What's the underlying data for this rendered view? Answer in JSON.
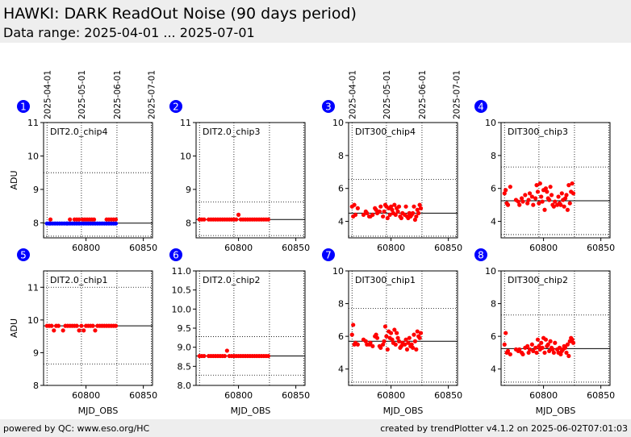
{
  "header": {
    "title": "HAWKI: DARK ReadOut Noise (90 days period)",
    "subtitle": "Data range: 2025-04-01 ... 2025-07-01"
  },
  "footer": {
    "left": "powered by QC: www.eso.org/HC",
    "right": "created by trendPlotter v4.1.2 on 2025-06-02T07:01:03"
  },
  "colors": {
    "marker_red": "#ff0000",
    "marker_blue": "#0000ff",
    "badge": "#0000ff",
    "header_bg": "#eeeeee"
  },
  "date_ticks": [
    "2025-04-01",
    "2025-05-01",
    "2025-06-01",
    "2025-07-01"
  ],
  "chart_data": [
    {
      "id": "1",
      "type": "scatter",
      "label": "DIT2.0_chip4",
      "ylabel": "ADU",
      "xlabel": "",
      "xlim": [
        60763,
        60858
      ],
      "ylim": [
        7.55,
        11
      ],
      "yticks": [
        8,
        9,
        10,
        11
      ],
      "xticks": [
        60800,
        60850
      ],
      "ref_line": 7.99,
      "dotted_lines": [
        9.5,
        7.6
      ],
      "series": [
        {
          "color": "#0000ff",
          "x": [
            60766,
            60768,
            60769,
            60771,
            60773,
            60775,
            60777,
            60779,
            60781,
            60783,
            60784,
            60786,
            60788,
            60790,
            60792,
            60794,
            60796,
            60798,
            60800,
            60802,
            60804,
            60806,
            60808,
            60810,
            60812,
            60814,
            60816,
            60818,
            60820,
            60822,
            60824,
            60826
          ],
          "y": [
            7.98,
            7.98,
            7.98,
            7.98,
            7.98,
            7.98,
            7.98,
            7.98,
            7.98,
            7.98,
            7.98,
            7.98,
            7.98,
            7.98,
            7.98,
            7.98,
            7.98,
            7.98,
            7.98,
            7.98,
            7.98,
            7.98,
            7.98,
            7.98,
            7.98,
            7.98,
            7.98,
            7.98,
            7.98,
            7.98,
            7.98,
            7.98
          ]
        },
        {
          "color": "#ff0000",
          "x": [
            60769,
            60786,
            60790,
            60792,
            60794,
            60797,
            60799,
            60801,
            60803,
            60805,
            60807,
            60818,
            60820,
            60822,
            60824,
            60826
          ],
          "y": [
            8.1,
            8.1,
            8.1,
            8.1,
            8.1,
            8.1,
            8.1,
            8.1,
            8.1,
            8.1,
            8.1,
            8.1,
            8.1,
            8.1,
            8.1,
            8.1
          ]
        }
      ]
    },
    {
      "id": "2",
      "type": "scatter",
      "label": "DIT2.0_chip3",
      "ylabel": "",
      "xlabel": "",
      "xlim": [
        60763,
        60858
      ],
      "ylim": [
        7.55,
        11
      ],
      "yticks": [
        8,
        9,
        10,
        11
      ],
      "xticks": [
        60800,
        60850
      ],
      "ref_line": 8.1,
      "dotted_lines": [
        8.62,
        7.62
      ],
      "series": [
        {
          "color": "#ff0000",
          "x": [
            60766,
            60768,
            60770,
            60774,
            60776,
            60778,
            60780,
            60782,
            60784,
            60786,
            60788,
            60790,
            60792,
            60794,
            60796,
            60798,
            60800,
            60802,
            60804,
            60806,
            60808,
            60810,
            60812,
            60814,
            60816,
            60818,
            60820,
            60822,
            60824,
            60826
          ],
          "y": [
            8.1,
            8.1,
            8.1,
            8.1,
            8.1,
            8.1,
            8.1,
            8.1,
            8.1,
            8.1,
            8.1,
            8.1,
            8.1,
            8.1,
            8.1,
            8.1,
            8.24,
            8.1,
            8.1,
            8.1,
            8.1,
            8.1,
            8.1,
            8.1,
            8.1,
            8.1,
            8.1,
            8.1,
            8.1,
            8.1
          ]
        }
      ]
    },
    {
      "id": "3",
      "type": "scatter",
      "label": "DIT300_chip4",
      "ylabel": "",
      "xlabel": "",
      "xlim": [
        60763,
        60858
      ],
      "ylim": [
        3,
        10
      ],
      "yticks": [
        4,
        6,
        8,
        10
      ],
      "xticks": [
        60800,
        60850
      ],
      "ref_line": 4.5,
      "dotted_lines": [
        6.55,
        3.1
      ],
      "series": [
        {
          "color": "#ff0000",
          "x": [
            60766,
            60767,
            60768,
            60769,
            60771,
            60776,
            60778,
            60779,
            60781,
            60782,
            60784,
            60786,
            60787,
            60788,
            60790,
            60791,
            60793,
            60794,
            60795,
            60796,
            60797,
            60798,
            60799,
            60800,
            60801,
            60802,
            60803,
            60804,
            60805,
            60806,
            60807,
            60808,
            60809,
            60810,
            60812,
            60813,
            60814,
            60815,
            60816,
            60817,
            60818,
            60819,
            60820,
            60821,
            60822,
            60823,
            60824,
            60825,
            60826
          ],
          "y": [
            4.9,
            4.3,
            5.0,
            4.4,
            4.8,
            4.4,
            4.6,
            4.5,
            4.3,
            4.3,
            4.4,
            4.8,
            4.7,
            4.5,
            4.6,
            4.9,
            4.3,
            4.6,
            5.0,
            4.9,
            4.2,
            4.8,
            4.4,
            4.9,
            4.7,
            4.5,
            5.0,
            4.4,
            4.8,
            4.6,
            4.9,
            4.3,
            4.2,
            4.5,
            4.4,
            4.9,
            4.3,
            4.2,
            4.5,
            4.3,
            4.4,
            4.5,
            4.9,
            4.1,
            4.3,
            4.7,
            4.5,
            5.0,
            4.8
          ]
        }
      ]
    },
    {
      "id": "4",
      "type": "scatter",
      "label": "DIT300_chip3",
      "ylabel": "",
      "xlabel": "",
      "xlim": [
        60763,
        60858
      ],
      "ylim": [
        3,
        10
      ],
      "yticks": [
        4,
        6,
        8,
        10
      ],
      "xticks": [
        60800,
        60850
      ],
      "ref_line": 5.25,
      "dotted_lines": [
        7.3,
        3.2
      ],
      "series": [
        {
          "color": "#ff0000",
          "x": [
            60766,
            60767,
            60768,
            60769,
            60771,
            60776,
            60778,
            60779,
            60781,
            60782,
            60784,
            60786,
            60787,
            60788,
            60790,
            60791,
            60793,
            60794,
            60795,
            60796,
            60797,
            60798,
            60799,
            60800,
            60801,
            60802,
            60803,
            60804,
            60805,
            60806,
            60807,
            60808,
            60809,
            60810,
            60812,
            60813,
            60814,
            60815,
            60816,
            60817,
            60818,
            60819,
            60820,
            60821,
            60822,
            60823,
            60824,
            60825,
            60826
          ],
          "y": [
            5.7,
            5.9,
            5.1,
            5.0,
            6.1,
            5.3,
            5.2,
            5.0,
            5.4,
            5.2,
            5.6,
            5.1,
            5.3,
            5.7,
            5.5,
            5.0,
            5.4,
            6.2,
            5.8,
            5.1,
            6.3,
            5.5,
            5.2,
            5.9,
            4.7,
            6.0,
            5.8,
            5.4,
            5.3,
            6.1,
            5.6,
            5.0,
            4.9,
            5.2,
            5.0,
            5.5,
            5.1,
            5.0,
            5.7,
            5.3,
            4.9,
            5.4,
            5.6,
            4.7,
            6.2,
            5.1,
            5.8,
            6.3,
            5.7
          ]
        }
      ]
    },
    {
      "id": "5",
      "type": "scatter",
      "label": "DIT2.0_chip1",
      "ylabel": "ADU",
      "xlabel": "MJD_OBS",
      "xlim": [
        60763,
        60858
      ],
      "ylim": [
        8,
        11.5
      ],
      "yticks": [
        8,
        9,
        10,
        11
      ],
      "xticks": [
        60800,
        60850
      ],
      "ref_line": 9.82,
      "dotted_lines": [
        11.0,
        8.65
      ],
      "series": [
        {
          "color": "#ff0000",
          "x": [
            60766,
            60768,
            60770,
            60772,
            60774,
            60776,
            60780,
            60782,
            60784,
            60786,
            60788,
            60790,
            60792,
            60794,
            60796,
            60798,
            60800,
            60802,
            60804,
            60806,
            60808,
            60810,
            60812,
            60814,
            60816,
            60818,
            60820,
            60822,
            60824,
            60826
          ],
          "y": [
            9.82,
            9.82,
            9.82,
            9.68,
            9.82,
            9.82,
            9.68,
            9.82,
            9.82,
            9.82,
            9.82,
            9.82,
            9.82,
            9.68,
            9.82,
            9.68,
            9.82,
            9.82,
            9.82,
            9.82,
            9.68,
            9.82,
            9.82,
            9.82,
            9.82,
            9.82,
            9.82,
            9.82,
            9.82,
            9.82
          ]
        }
      ]
    },
    {
      "id": "6",
      "type": "scatter",
      "label": "DIT2.0_chip2",
      "ylabel": "",
      "xlabel": "MJD_OBS",
      "xlim": [
        60763,
        60858
      ],
      "ylim": [
        8,
        11
      ],
      "yticks": [
        8.0,
        8.5,
        9.0,
        9.5,
        10.0,
        10.5,
        11.0
      ],
      "xticks": [
        60800,
        60850
      ],
      "ref_line": 8.77,
      "dotted_lines": [
        9.28,
        8.27
      ],
      "series": [
        {
          "color": "#ff0000",
          "x": [
            60766,
            60768,
            60770,
            60774,
            60776,
            60778,
            60780,
            60782,
            60784,
            60786,
            60788,
            60790,
            60792,
            60794,
            60796,
            60798,
            60800,
            60802,
            60804,
            60806,
            60808,
            60810,
            60812,
            60814,
            60816,
            60818,
            60820,
            60822,
            60824,
            60826
          ],
          "y": [
            8.77,
            8.77,
            8.77,
            8.77,
            8.77,
            8.77,
            8.77,
            8.77,
            8.77,
            8.77,
            8.77,
            8.91,
            8.77,
            8.77,
            8.77,
            8.77,
            8.77,
            8.77,
            8.77,
            8.77,
            8.77,
            8.77,
            8.77,
            8.77,
            8.77,
            8.77,
            8.77,
            8.77,
            8.77,
            8.77
          ]
        }
      ]
    },
    {
      "id": "7",
      "type": "scatter",
      "label": "DIT300_chip1",
      "ylabel": "",
      "xlabel": "MJD_OBS",
      "xlim": [
        60763,
        60858
      ],
      "ylim": [
        3,
        10
      ],
      "yticks": [
        4,
        6,
        8,
        10
      ],
      "xticks": [
        60800,
        60850
      ],
      "ref_line": 5.7,
      "dotted_lines": [
        7.7,
        3.2
      ],
      "series": [
        {
          "color": "#ff0000",
          "x": [
            60766,
            60767,
            60768,
            60769,
            60771,
            60776,
            60778,
            60779,
            60781,
            60782,
            60784,
            60786,
            60787,
            60788,
            60790,
            60791,
            60793,
            60794,
            60795,
            60796,
            60797,
            60798,
            60799,
            60800,
            60801,
            60802,
            60803,
            60804,
            60805,
            60806,
            60807,
            60808,
            60809,
            60810,
            60812,
            60813,
            60814,
            60815,
            60816,
            60817,
            60818,
            60819,
            60820,
            60821,
            60822,
            60823,
            60824,
            60825,
            60826
          ],
          "y": [
            6.1,
            6.7,
            5.5,
            5.6,
            5.5,
            5.8,
            5.7,
            5.5,
            5.5,
            5.6,
            5.4,
            6.0,
            6.1,
            5.9,
            5.4,
            5.3,
            5.5,
            5.7,
            6.6,
            6.0,
            5.2,
            6.3,
            5.9,
            6.2,
            5.8,
            5.6,
            6.4,
            5.5,
            6.2,
            5.9,
            5.7,
            5.3,
            5.4,
            5.6,
            5.5,
            5.8,
            5.2,
            5.6,
            5.9,
            5.4,
            5.5,
            5.3,
            6.1,
            5.7,
            5.2,
            6.3,
            6.0,
            5.9,
            6.2
          ]
        }
      ]
    },
    {
      "id": "8",
      "type": "scatter",
      "label": "DIT300_chip2",
      "ylabel": "",
      "xlabel": "MJD_OBS",
      "xlim": [
        60763,
        60858
      ],
      "ylim": [
        3,
        10
      ],
      "yticks": [
        4,
        6,
        8,
        10
      ],
      "xticks": [
        60800,
        60850
      ],
      "ref_line": 5.25,
      "dotted_lines": [
        7.3,
        3.2
      ],
      "series": [
        {
          "color": "#ff0000",
          "x": [
            60766,
            60767,
            60768,
            60769,
            60771,
            60776,
            60778,
            60779,
            60781,
            60782,
            60784,
            60786,
            60787,
            60788,
            60790,
            60791,
            60793,
            60794,
            60795,
            60796,
            60797,
            60798,
            60799,
            60800,
            60801,
            60802,
            60803,
            60804,
            60805,
            60806,
            60807,
            60808,
            60809,
            60810,
            60812,
            60813,
            60814,
            60815,
            60816,
            60817,
            60818,
            60819,
            60820,
            60821,
            60822,
            60823,
            60824,
            60825,
            60826
          ],
          "y": [
            5.5,
            6.2,
            5.0,
            5.1,
            4.9,
            5.2,
            5.1,
            5.2,
            5.0,
            4.9,
            5.3,
            5.4,
            5.0,
            5.2,
            5.5,
            5.1,
            5.3,
            5.0,
            5.8,
            5.4,
            5.2,
            5.6,
            5.3,
            5.9,
            5.0,
            5.8,
            5.4,
            5.5,
            5.1,
            5.7,
            5.3,
            5.2,
            5.0,
            5.6,
            5.2,
            5.0,
            5.3,
            4.9,
            5.1,
            5.2,
            5.4,
            5.3,
            5.0,
            5.5,
            4.8,
            5.7,
            5.9,
            5.8,
            5.6
          ]
        }
      ]
    }
  ]
}
